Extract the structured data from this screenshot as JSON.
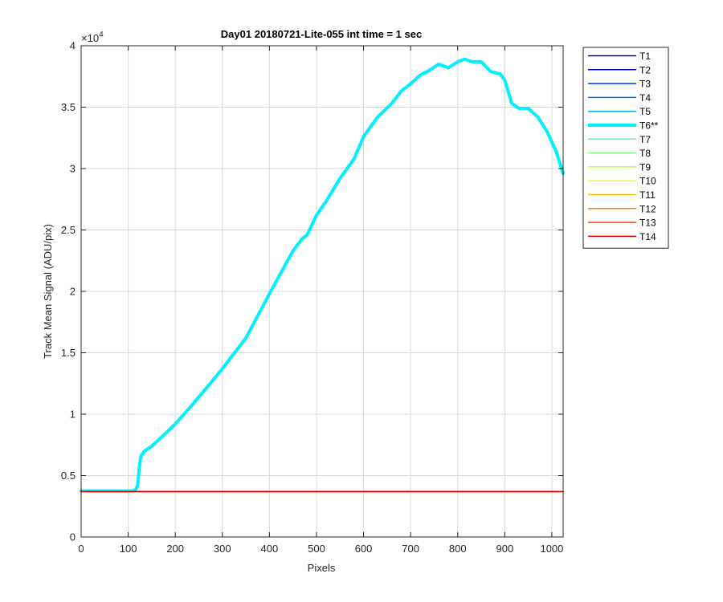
{
  "chart_data": {
    "type": "line",
    "title": "Day01 20180721-Lite-055 int time = 1 sec",
    "xlabel": "Pixels",
    "ylabel": "Track Mean Signal (ADU/pix)",
    "y_exponent_label": "×10",
    "y_exponent_power": "4",
    "xlim": [
      0,
      1024
    ],
    "ylim": [
      0,
      40000
    ],
    "x_ticks": [
      0,
      100,
      200,
      300,
      400,
      500,
      600,
      700,
      800,
      900,
      1000
    ],
    "x_tick_labels": [
      "0",
      "100",
      "200",
      "300",
      "400",
      "500",
      "600",
      "700",
      "800",
      "900",
      "1000"
    ],
    "y_ticks": [
      0,
      5000,
      10000,
      15000,
      20000,
      25000,
      30000,
      35000,
      40000
    ],
    "y_tick_labels": [
      "0",
      "0.5",
      "1",
      "1.5",
      "2",
      "2.5",
      "3",
      "3.5",
      "4"
    ],
    "grid": true,
    "legend_position": "outside-top-right",
    "series": [
      {
        "name": "T1",
        "color": "#00008f",
        "width": 1.5,
        "points": [
          [
            0,
            3700
          ],
          [
            1024,
            3700
          ]
        ]
      },
      {
        "name": "T2",
        "color": "#0000df",
        "width": 1.5,
        "points": [
          [
            0,
            3700
          ],
          [
            1024,
            3700
          ]
        ]
      },
      {
        "name": "T3",
        "color": "#0030ff",
        "width": 1.5,
        "points": [
          [
            0,
            3700
          ],
          [
            1024,
            3700
          ]
        ]
      },
      {
        "name": "T4",
        "color": "#0070ff",
        "width": 1.5,
        "points": [
          [
            0,
            3700
          ],
          [
            1024,
            3700
          ]
        ]
      },
      {
        "name": "T5",
        "color": "#00b0ff",
        "width": 1.5,
        "points": [
          [
            0,
            3700
          ],
          [
            1024,
            3700
          ]
        ]
      },
      {
        "name": "T6**",
        "color": "#00f0ff",
        "width": 4,
        "points": [
          [
            0,
            3750
          ],
          [
            110,
            3750
          ],
          [
            116,
            3850
          ],
          [
            120,
            4200
          ],
          [
            123,
            5500
          ],
          [
            127,
            6600
          ],
          [
            135,
            7000
          ],
          [
            150,
            7400
          ],
          [
            170,
            8100
          ],
          [
            200,
            9200
          ],
          [
            230,
            10500
          ],
          [
            270,
            12300
          ],
          [
            300,
            13700
          ],
          [
            350,
            16200
          ],
          [
            400,
            19800
          ],
          [
            450,
            23300
          ],
          [
            470,
            24300
          ],
          [
            480,
            24600
          ],
          [
            500,
            26200
          ],
          [
            520,
            27300
          ],
          [
            550,
            29200
          ],
          [
            580,
            30800
          ],
          [
            600,
            32600
          ],
          [
            630,
            34200
          ],
          [
            660,
            35300
          ],
          [
            680,
            36300
          ],
          [
            700,
            36900
          ],
          [
            720,
            37600
          ],
          [
            740,
            38000
          ],
          [
            760,
            38500
          ],
          [
            780,
            38200
          ],
          [
            800,
            38700
          ],
          [
            815,
            38900
          ],
          [
            830,
            38700
          ],
          [
            850,
            38700
          ],
          [
            870,
            37900
          ],
          [
            890,
            37700
          ],
          [
            900,
            37200
          ],
          [
            915,
            35300
          ],
          [
            930,
            34900
          ],
          [
            950,
            34900
          ],
          [
            970,
            34200
          ],
          [
            990,
            33000
          ],
          [
            1010,
            31300
          ],
          [
            1024,
            29600
          ]
        ]
      },
      {
        "name": "T7",
        "color": "#40ffbf",
        "width": 1.5,
        "points": [
          [
            0,
            3700
          ],
          [
            1024,
            3700
          ]
        ]
      },
      {
        "name": "T8",
        "color": "#80ff80",
        "width": 1.5,
        "points": [
          [
            0,
            3700
          ],
          [
            1024,
            3700
          ]
        ]
      },
      {
        "name": "T9",
        "color": "#bfff40",
        "width": 1.5,
        "points": [
          [
            0,
            3700
          ],
          [
            1024,
            3700
          ]
        ]
      },
      {
        "name": "T10",
        "color": "#ffff00",
        "width": 1.5,
        "points": [
          [
            0,
            3700
          ],
          [
            1024,
            3700
          ]
        ]
      },
      {
        "name": "T11",
        "color": "#ffbf00",
        "width": 1.5,
        "points": [
          [
            0,
            3700
          ],
          [
            1024,
            3700
          ]
        ]
      },
      {
        "name": "T12",
        "color": "#ff8000",
        "width": 1.5,
        "points": [
          [
            0,
            3700
          ],
          [
            1024,
            3700
          ]
        ]
      },
      {
        "name": "T13",
        "color": "#ff4000",
        "width": 1.5,
        "points": [
          [
            0,
            3700
          ],
          [
            1024,
            3700
          ]
        ]
      },
      {
        "name": "T14",
        "color": "#e60000",
        "width": 1.5,
        "points": [
          [
            0,
            3700
          ],
          [
            1024,
            3700
          ]
        ]
      }
    ]
  }
}
